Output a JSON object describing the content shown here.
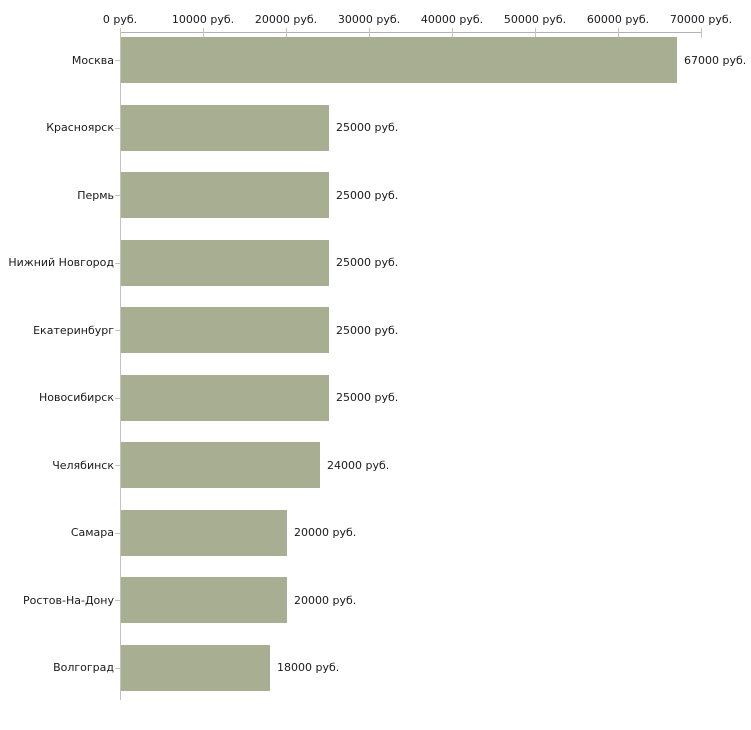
{
  "chart_data": {
    "type": "bar",
    "orientation": "horizontal",
    "categories": [
      "Москва",
      "Красноярск",
      "Пермь",
      "Нижний Новгород",
      "Екатеринбург",
      "Новосибирск",
      "Челябинск",
      "Самара",
      "Ростов-На-Дону",
      "Волгоград"
    ],
    "values": [
      67000,
      25000,
      25000,
      25000,
      25000,
      25000,
      24000,
      20000,
      20000,
      18000
    ],
    "value_labels": [
      "67000 руб.",
      "25000 руб.",
      "25000 руб.",
      "25000 руб.",
      "25000 руб.",
      "25000 руб.",
      "24000 руб.",
      "20000 руб.",
      "20000 руб.",
      "18000 руб."
    ],
    "x_axis": {
      "position": "top",
      "xlim": [
        0,
        70000
      ],
      "tick_values": [
        0,
        10000,
        20000,
        30000,
        40000,
        50000,
        60000,
        70000
      ],
      "tick_labels": [
        "0 руб.",
        "10000 руб.",
        "20000 руб.",
        "30000 руб.",
        "40000 руб.",
        "50000 руб.",
        "60000 руб.",
        "70000 руб."
      ]
    },
    "grid": false,
    "legend": false,
    "colors": {
      "bar_fill": "#a8ae92",
      "tick_mark": "#c6c9a4",
      "axis_line_horizontal": "#b2b2b2",
      "axis_line_vertical": "#c2c2c2",
      "text": "#1a1a1a",
      "background": "#ffffff"
    }
  }
}
